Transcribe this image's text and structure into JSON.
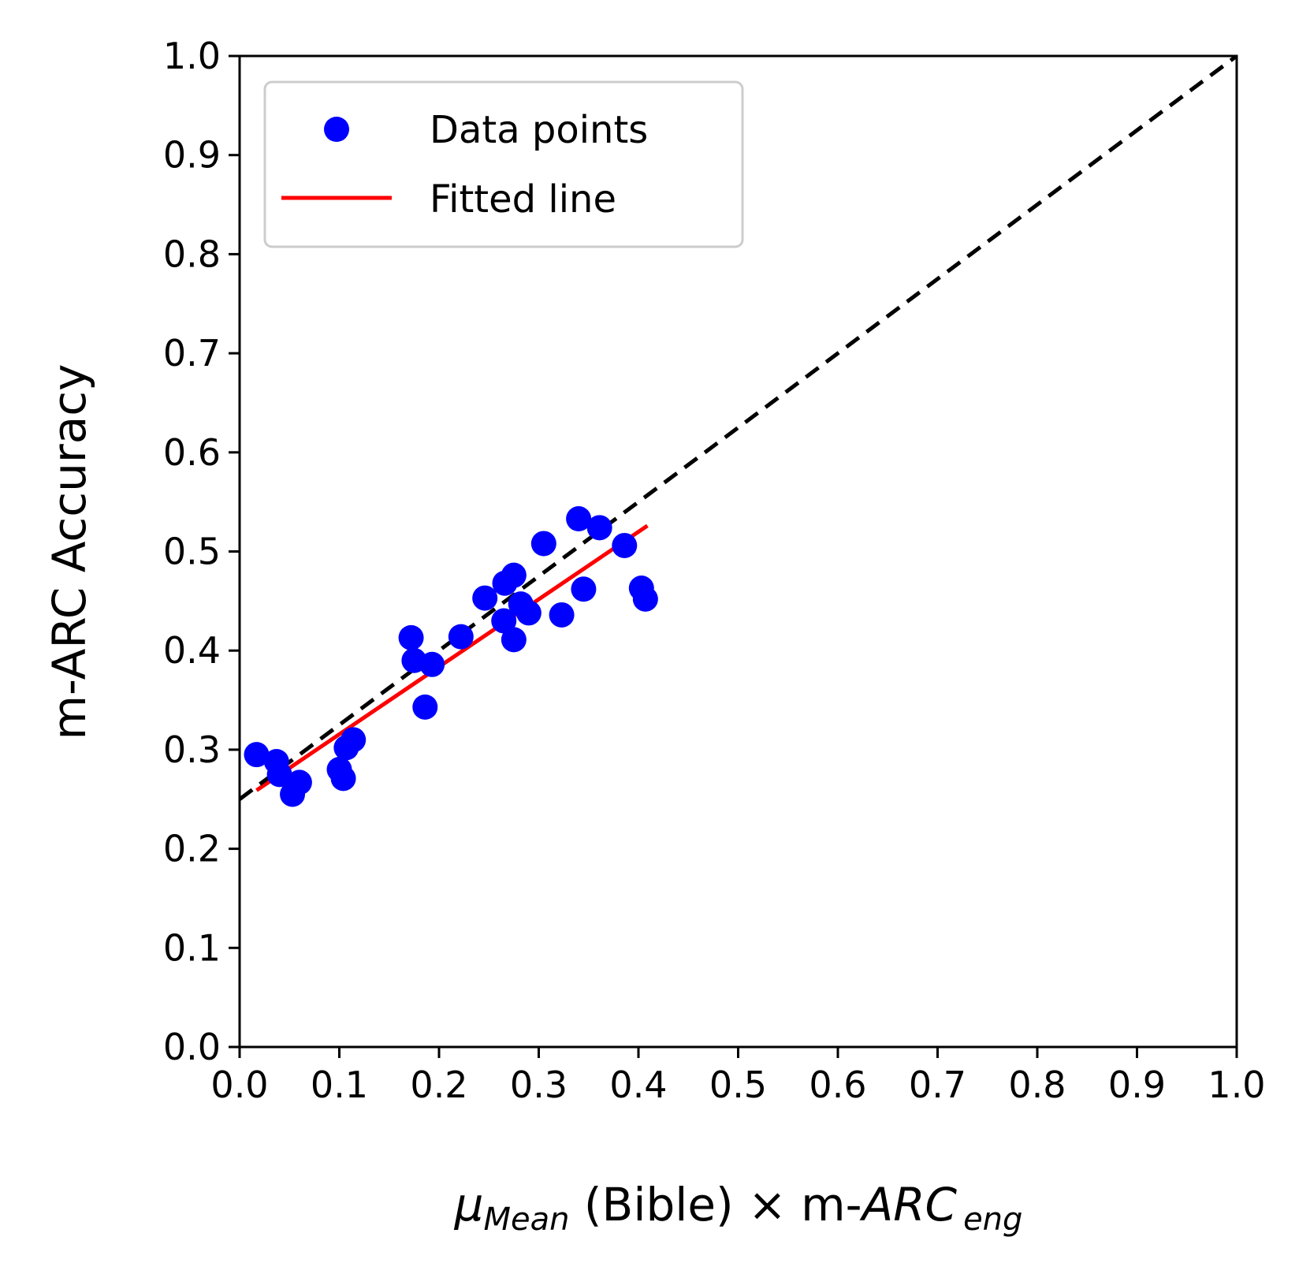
{
  "chart_data": {
    "type": "scatter",
    "title": "",
    "xlabel": {
      "symbol": "μ",
      "subscript": "Mean",
      "middle": " (Bible) × m-",
      "italic": "ARC",
      "italic_subscript": "eng"
    },
    "ylabel": "m-ARC Accuracy",
    "xlim": [
      0.0,
      1.0
    ],
    "ylim": [
      0.0,
      1.0
    ],
    "xticks": [
      "0.0",
      "0.1",
      "0.2",
      "0.3",
      "0.4",
      "0.5",
      "0.6",
      "0.7",
      "0.8",
      "0.9",
      "1.0"
    ],
    "yticks": [
      "0.0",
      "0.1",
      "0.2",
      "0.3",
      "0.4",
      "0.5",
      "0.6",
      "0.7",
      "0.8",
      "0.9",
      "1.0"
    ],
    "grid": false,
    "legend": {
      "position": "top-left",
      "entries": [
        "Data points",
        "Fitted line"
      ]
    },
    "series": [
      {
        "name": "Data points",
        "type": "scatter",
        "color": "#0000ff",
        "points": [
          [
            0.017,
            0.295
          ],
          [
            0.037,
            0.288
          ],
          [
            0.04,
            0.275
          ],
          [
            0.053,
            0.255
          ],
          [
            0.06,
            0.267
          ],
          [
            0.1,
            0.28
          ],
          [
            0.104,
            0.271
          ],
          [
            0.107,
            0.302
          ],
          [
            0.114,
            0.31
          ],
          [
            0.172,
            0.413
          ],
          [
            0.175,
            0.39
          ],
          [
            0.186,
            0.343
          ],
          [
            0.193,
            0.386
          ],
          [
            0.222,
            0.414
          ],
          [
            0.246,
            0.453
          ],
          [
            0.265,
            0.43
          ],
          [
            0.266,
            0.468
          ],
          [
            0.275,
            0.476
          ],
          [
            0.275,
            0.411
          ],
          [
            0.282,
            0.447
          ],
          [
            0.29,
            0.438
          ],
          [
            0.305,
            0.508
          ],
          [
            0.323,
            0.436
          ],
          [
            0.34,
            0.533
          ],
          [
            0.345,
            0.462
          ],
          [
            0.361,
            0.524
          ],
          [
            0.386,
            0.506
          ],
          [
            0.403,
            0.463
          ],
          [
            0.407,
            0.452
          ]
        ]
      },
      {
        "name": "Fitted line",
        "type": "line",
        "color": "#ff0000",
        "points": [
          [
            0.017,
            0.259
          ],
          [
            0.409,
            0.526
          ]
        ]
      },
      {
        "name": "reference",
        "type": "line",
        "style": "dashed",
        "color": "#000000",
        "points": [
          [
            0.0,
            0.25
          ],
          [
            1.0,
            1.0
          ]
        ]
      }
    ]
  }
}
